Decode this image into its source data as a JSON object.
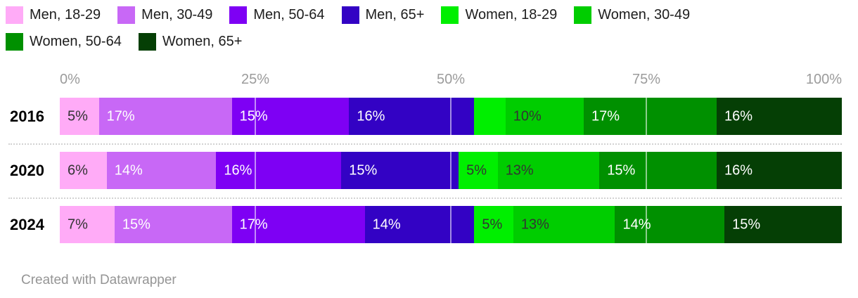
{
  "chart_data": {
    "type": "bar",
    "variant": "stacked-horizontal",
    "unit": "%",
    "title": "",
    "categories": [
      "2016",
      "2020",
      "2024"
    ],
    "series": [
      {
        "name": "Men, 18-29",
        "color": "#ffabf7",
        "label_style": "dark",
        "values": [
          5,
          6,
          7
        ],
        "labels": [
          "5%",
          "6%",
          "7%"
        ]
      },
      {
        "name": "Men, 30-49",
        "color": "#c868f6",
        "label_style": "light",
        "values": [
          17,
          14,
          15
        ],
        "labels": [
          "17%",
          "14%",
          "15%"
        ]
      },
      {
        "name": "Men, 50-64",
        "color": "#7e00f4",
        "label_style": "light",
        "values": [
          15,
          16,
          17
        ],
        "labels": [
          "15%",
          "16%",
          "17%"
        ]
      },
      {
        "name": "Men, 65+",
        "color": "#3302c4",
        "label_style": "light",
        "values": [
          16,
          15,
          14
        ],
        "labels": [
          "16%",
          "15%",
          "14%"
        ]
      },
      {
        "name": "Women, 18-29",
        "color": "#00ef00",
        "label_style": "dark",
        "values": [
          4,
          5,
          5
        ],
        "labels": [
          "",
          "5%",
          "5%"
        ]
      },
      {
        "name": "Women, 30-49",
        "color": "#00cd00",
        "label_style": "dark",
        "values": [
          10,
          13,
          13
        ],
        "labels": [
          "10%",
          "13%",
          "13%"
        ]
      },
      {
        "name": "Women, 50-64",
        "color": "#009000",
        "label_style": "light",
        "values": [
          17,
          15,
          14
        ],
        "labels": [
          "17%",
          "15%",
          "14%"
        ]
      },
      {
        "name": "Women, 65+",
        "color": "#053f05",
        "label_style": "light",
        "values": [
          16,
          16,
          15
        ],
        "labels": [
          "16%",
          "16%",
          "15%"
        ]
      }
    ],
    "xlim": [
      0,
      100
    ],
    "axis_ticks": [
      {
        "label": "0%",
        "position": 0
      },
      {
        "label": "25%",
        "position": 25
      },
      {
        "label": "50%",
        "position": 50
      },
      {
        "label": "75%",
        "position": 75
      },
      {
        "label": "100%",
        "position": 100
      }
    ],
    "gridlines": [
      25,
      50,
      75
    ],
    "legend_position": "top",
    "grid": "vertical-on-bars"
  },
  "layout_colors": {
    "axis_tick_text": "#9b9b9b",
    "year_label_text": "#000000",
    "dark_segment_label": "#333333",
    "light_segment_label": "#ffffff",
    "separator": "#d2d2d2",
    "credit_text": "#959595"
  },
  "footer": {
    "credit": "Created with Datawrapper"
  }
}
